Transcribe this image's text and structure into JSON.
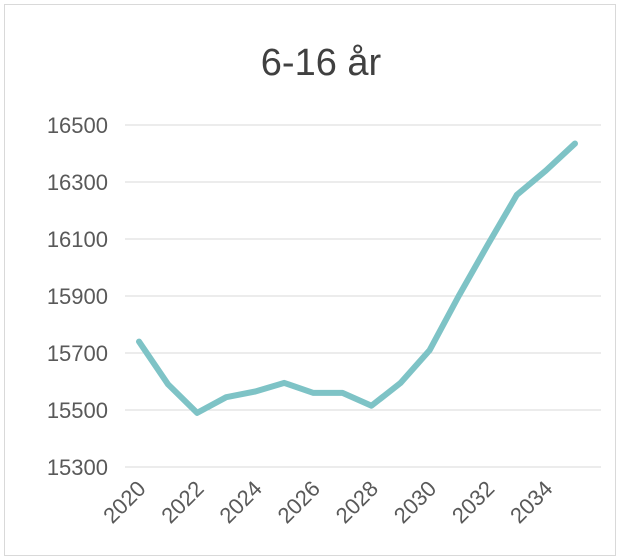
{
  "chart_data": {
    "type": "line",
    "title": "6-16 år",
    "xlabel": "",
    "ylabel": "",
    "x": [
      2020,
      2021,
      2022,
      2023,
      2024,
      2025,
      2026,
      2027,
      2028,
      2029,
      2030,
      2031,
      2032,
      2033,
      2034,
      2035
    ],
    "x_tick_labels": [
      "2020",
      "2022",
      "2024",
      "2026",
      "2028",
      "2030",
      "2032",
      "2034"
    ],
    "y_tick_labels": [
      "15300",
      "15500",
      "15700",
      "15900",
      "16100",
      "16300",
      "16500"
    ],
    "ylim": [
      15300,
      16500
    ],
    "grid": true,
    "series": [
      {
        "values": [
          15740,
          15590,
          15490,
          15545,
          15565,
          15595,
          15560,
          15560,
          15515,
          15595,
          15710,
          15900,
          16080,
          16255,
          16340,
          16435
        ],
        "color": "#7ec3c6"
      }
    ]
  }
}
